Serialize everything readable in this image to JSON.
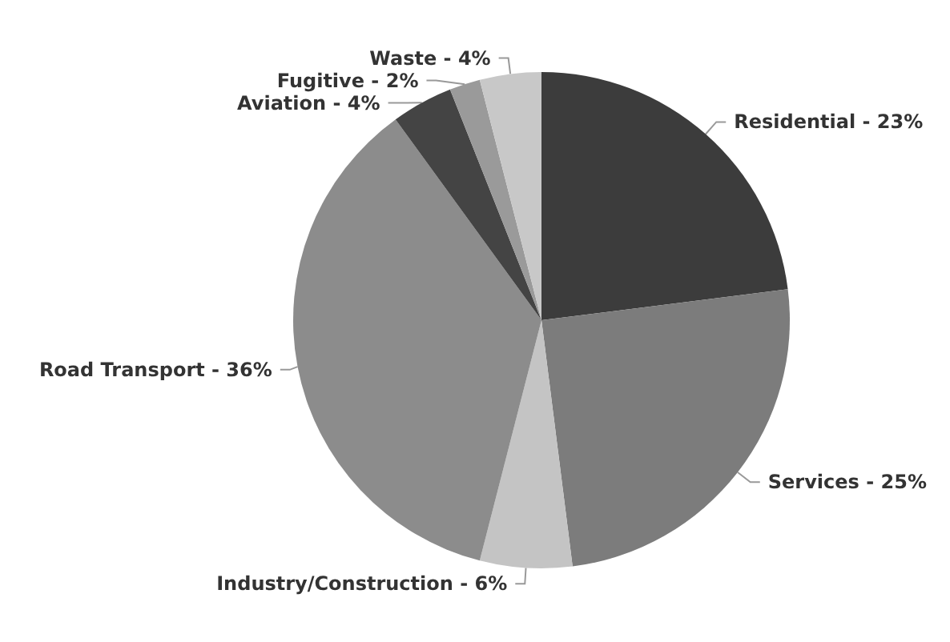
{
  "chart_data": {
    "type": "pie",
    "categories": [
      "Residential",
      "Services",
      "Industry/Construction",
      "Road Transport",
      "Aviation",
      "Fugitive",
      "Waste"
    ],
    "values": [
      23,
      25,
      6,
      36,
      4,
      2,
      4
    ],
    "value_labels": [
      "23%",
      "25%",
      "6%",
      "36%",
      "4%",
      "2%",
      "4%"
    ],
    "colors": [
      "#3c3c3c",
      "#7c7c7c",
      "#c4c4c4",
      "#8c8c8c",
      "#444444",
      "#9a9a9a",
      "#c8c8c8"
    ]
  }
}
